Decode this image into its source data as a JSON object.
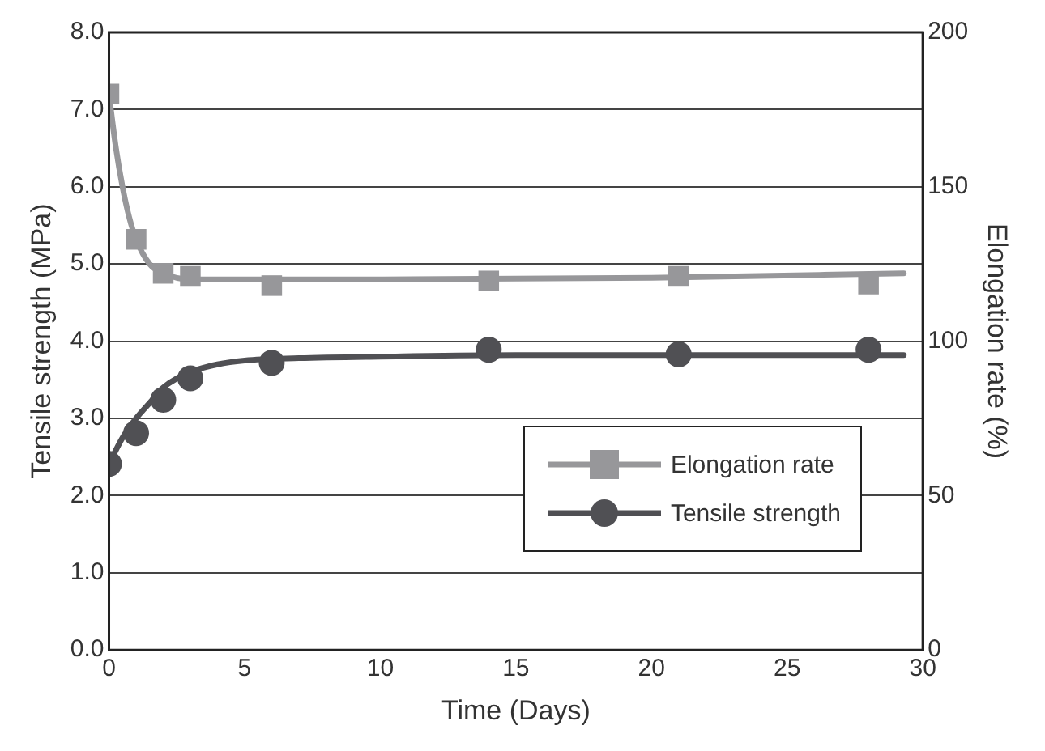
{
  "chart_data": {
    "type": "scatter",
    "xlabel": "Time (Days)",
    "ylabel": "Tensile strength (MPa)",
    "y2label": "Elongation rate (%)",
    "x": [
      0,
      1,
      2,
      3,
      6,
      14,
      21,
      28
    ],
    "series": [
      {
        "name": "Elongation rate",
        "color": "#97979a",
        "axis": "y2",
        "marker": "square",
        "values": [
          180,
          133,
          122,
          121,
          118,
          119.5,
          121,
          118.5
        ]
      },
      {
        "name": "Tensile strength",
        "color": "#505054",
        "axis": "y",
        "marker": "circle",
        "values": [
          2.41,
          2.81,
          3.24,
          3.52,
          3.72,
          3.89,
          3.83,
          3.89
        ]
      },
      {
        "type": "line",
        "color": "#97979a",
        "axis": "y2",
        "marker": "none",
        "x": [
          0,
          0.25,
          0.5,
          0.75,
          1,
          1.5,
          2,
          3,
          5,
          10,
          20,
          29.3
        ],
        "values": [
          180,
          163,
          150,
          140,
          133,
          125,
          122,
          120,
          120,
          120,
          120.5,
          122
        ]
      },
      {
        "type": "line",
        "color": "#505054",
        "axis": "y",
        "marker": "none",
        "x": [
          0,
          0.5,
          1,
          1.5,
          2,
          3,
          4,
          5,
          7,
          10,
          15,
          29.3
        ],
        "values": [
          2.41,
          2.75,
          3.0,
          3.2,
          3.4,
          3.6,
          3.7,
          3.75,
          3.78,
          3.8,
          3.82,
          3.82
        ]
      }
    ],
    "xlim": [
      0,
      30
    ],
    "xticks": [
      0,
      5,
      10,
      15,
      20,
      25,
      30
    ],
    "ylim": [
      0,
      8
    ],
    "yticks": [
      {
        "value": 0,
        "label": "0.0"
      },
      {
        "value": 1,
        "label": "1.0"
      },
      {
        "value": 2,
        "label": "2.0"
      },
      {
        "value": 3,
        "label": "3.0"
      },
      {
        "value": 4,
        "label": "4.0"
      },
      {
        "value": 5,
        "label": "5.0"
      },
      {
        "value": 6,
        "label": "6.0"
      },
      {
        "value": 7,
        "label": "7.0"
      },
      {
        "value": 8,
        "label": "8.0"
      }
    ],
    "y2lim": [
      0,
      200
    ],
    "y2ticks": [
      0,
      50,
      100,
      150,
      200
    ],
    "grid": "y",
    "legend": "bottom right"
  }
}
